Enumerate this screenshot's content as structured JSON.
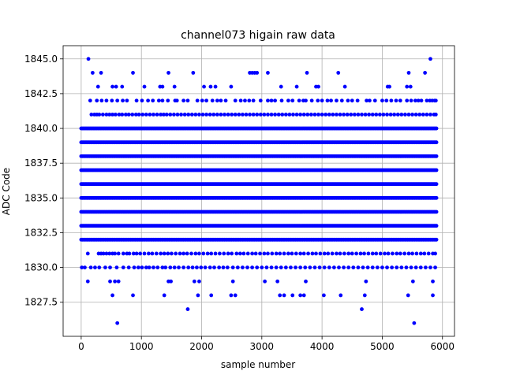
{
  "chart_data": {
    "type": "scatter",
    "title": "channel073 higain raw data",
    "xlabel": "sample number",
    "ylabel": "ADC Code",
    "xlim": [
      -300,
      6200
    ],
    "ylim": [
      1825.05,
      1845.95
    ],
    "x_ticks": [
      0,
      1000,
      2000,
      3000,
      4000,
      5000,
      6000
    ],
    "x_tick_labels": [
      "0",
      "1000",
      "2000",
      "3000",
      "4000",
      "5000",
      "6000"
    ],
    "y_ticks": [
      1827.5,
      1830.0,
      1832.5,
      1835.0,
      1837.5,
      1840.0,
      1842.5,
      1845.0
    ],
    "y_tick_labels": [
      "1827.5",
      "1830.0",
      "1832.5",
      "1835.0",
      "1837.5",
      "1840.0",
      "1842.5",
      "1845.0"
    ],
    "grid": true,
    "marker_color": "#0000ff",
    "sample_range": [
      0,
      5900
    ],
    "dense_levels": [
      1832,
      1833,
      1834,
      1835,
      1836,
      1837,
      1838,
      1839,
      1840
    ],
    "sparse_levels": [
      {
        "y": 1831,
        "x": [
          110,
          290,
          330,
          370,
          420,
          470,
          520,
          560,
          620,
          700,
          760,
          800,
          870,
          920,
          980,
          1050,
          1120,
          1180,
          1250,
          1320,
          1380,
          1440,
          1500,
          1570,
          1640,
          1700,
          1760,
          1830,
          1900,
          1960,
          2030,
          2100,
          2160,
          2230,
          2300,
          2370,
          2440,
          2500,
          2580,
          2640,
          2700,
          2770,
          2840,
          2900,
          2970,
          3040,
          3100,
          3170,
          3240,
          3300,
          3370,
          3440,
          3500,
          3570,
          3640,
          3700,
          3770,
          3840,
          3900,
          3970,
          4040,
          4100,
          4170,
          4240,
          4300,
          4370,
          4440,
          4500,
          4570,
          4640,
          4700,
          4770,
          4840,
          4900,
          4970,
          5040,
          5100,
          5170,
          5240,
          5300,
          5370,
          5440,
          5500,
          5570,
          5640,
          5700,
          5770,
          5840,
          5880
        ]
      },
      {
        "y": 1830,
        "x": [
          10,
          60,
          160,
          230,
          300,
          400,
          480,
          590,
          700,
          790,
          880,
          950,
          1010,
          1080,
          1130,
          1200,
          1270,
          1350,
          1400,
          1480,
          1550,
          1620,
          1700,
          1780,
          1850,
          1920,
          1990,
          2060,
          2140,
          2210,
          2290,
          2360,
          2430,
          2520,
          2600,
          2680,
          2760,
          2840,
          2920,
          3000,
          3080,
          3160,
          3240,
          3320,
          3400,
          3480,
          3560,
          3640,
          3720,
          3800,
          3880,
          3960,
          4040,
          4120,
          4200,
          4280,
          4360,
          4440,
          4520,
          4600,
          4680,
          4760,
          4840,
          4920,
          5000,
          5080,
          5160,
          5240,
          5320,
          5400,
          5480,
          5560,
          5640,
          5720,
          5800,
          5880
        ]
      },
      {
        "y": 1829,
        "x": [
          110,
          480,
          560,
          620,
          1450,
          1490,
          1880,
          1960,
          2520,
          3050,
          3260,
          3730,
          4730,
          5510,
          5840
        ]
      },
      {
        "y": 1828,
        "x": [
          520,
          860,
          1380,
          1940,
          2160,
          2490,
          2560,
          3300,
          3370,
          3510,
          3640,
          3700,
          4030,
          4310,
          4710,
          5430,
          5840
        ]
      },
      {
        "y": 1827,
        "x": [
          1770,
          4660
        ]
      },
      {
        "y": 1826,
        "x": [
          600,
          5530
        ]
      },
      {
        "y": 1841,
        "x": [
          170,
          220,
          260,
          300,
          360,
          420,
          470,
          520,
          570,
          630,
          680,
          740,
          790,
          850,
          910,
          960,
          1020,
          1080,
          1140,
          1200,
          1260,
          1320,
          1370,
          1420,
          1480,
          1540,
          1600,
          1660,
          1720,
          1780,
          1840,
          1900,
          1960,
          2020,
          2080,
          2140,
          2200,
          2260,
          2320,
          2380,
          2440,
          2500,
          2560,
          2620,
          2680,
          2740,
          2800,
          2860,
          2920,
          2980,
          3040,
          3100,
          3160,
          3220,
          3280,
          3340,
          3400,
          3460,
          3520,
          3580,
          3640,
          3700,
          3760,
          3820,
          3880,
          3940,
          4000,
          4060,
          4120,
          4180,
          4240,
          4300,
          4360,
          4420,
          4480,
          4540,
          4600,
          4660,
          4720,
          4780,
          4840,
          4900,
          4960,
          5020,
          5080,
          5140,
          5200,
          5260,
          5320,
          5380,
          5440,
          5500,
          5560,
          5620,
          5680,
          5740,
          5800,
          5860,
          5890
        ]
      },
      {
        "y": 1842,
        "x": [
          150,
          260,
          340,
          420,
          510,
          600,
          690,
          760,
          920,
          1010,
          1110,
          1190,
          1290,
          1350,
          1440,
          1560,
          1590,
          1700,
          1770,
          1930,
          2010,
          2080,
          2180,
          2260,
          2320,
          2400,
          2560,
          2650,
          2720,
          2790,
          2860,
          2980,
          3100,
          3160,
          3220,
          3330,
          3440,
          3510,
          3620,
          3690,
          3730,
          3830,
          3930,
          4000,
          4090,
          4150,
          4240,
          4330,
          4430,
          4500,
          4590,
          4740,
          4790,
          4880,
          5000,
          5070,
          5150,
          5230,
          5300,
          5410,
          5480,
          5550,
          5600,
          5650,
          5740,
          5790,
          5830,
          5870,
          5890
        ]
      },
      {
        "y": 1843,
        "x": [
          280,
          520,
          580,
          680,
          1050,
          1310,
          1350,
          1550,
          2040,
          2150,
          2230,
          2490,
          3320,
          3580,
          3900,
          3940,
          4380,
          5090,
          5120,
          5410,
          5470
        ]
      },
      {
        "y": 1844,
        "x": [
          190,
          330,
          860,
          1450,
          1860,
          2800,
          2840,
          2880,
          2920,
          3100,
          3750,
          4270,
          5440,
          5710
        ]
      },
      {
        "y": 1845,
        "x": [
          120,
          5800
        ]
      }
    ]
  }
}
